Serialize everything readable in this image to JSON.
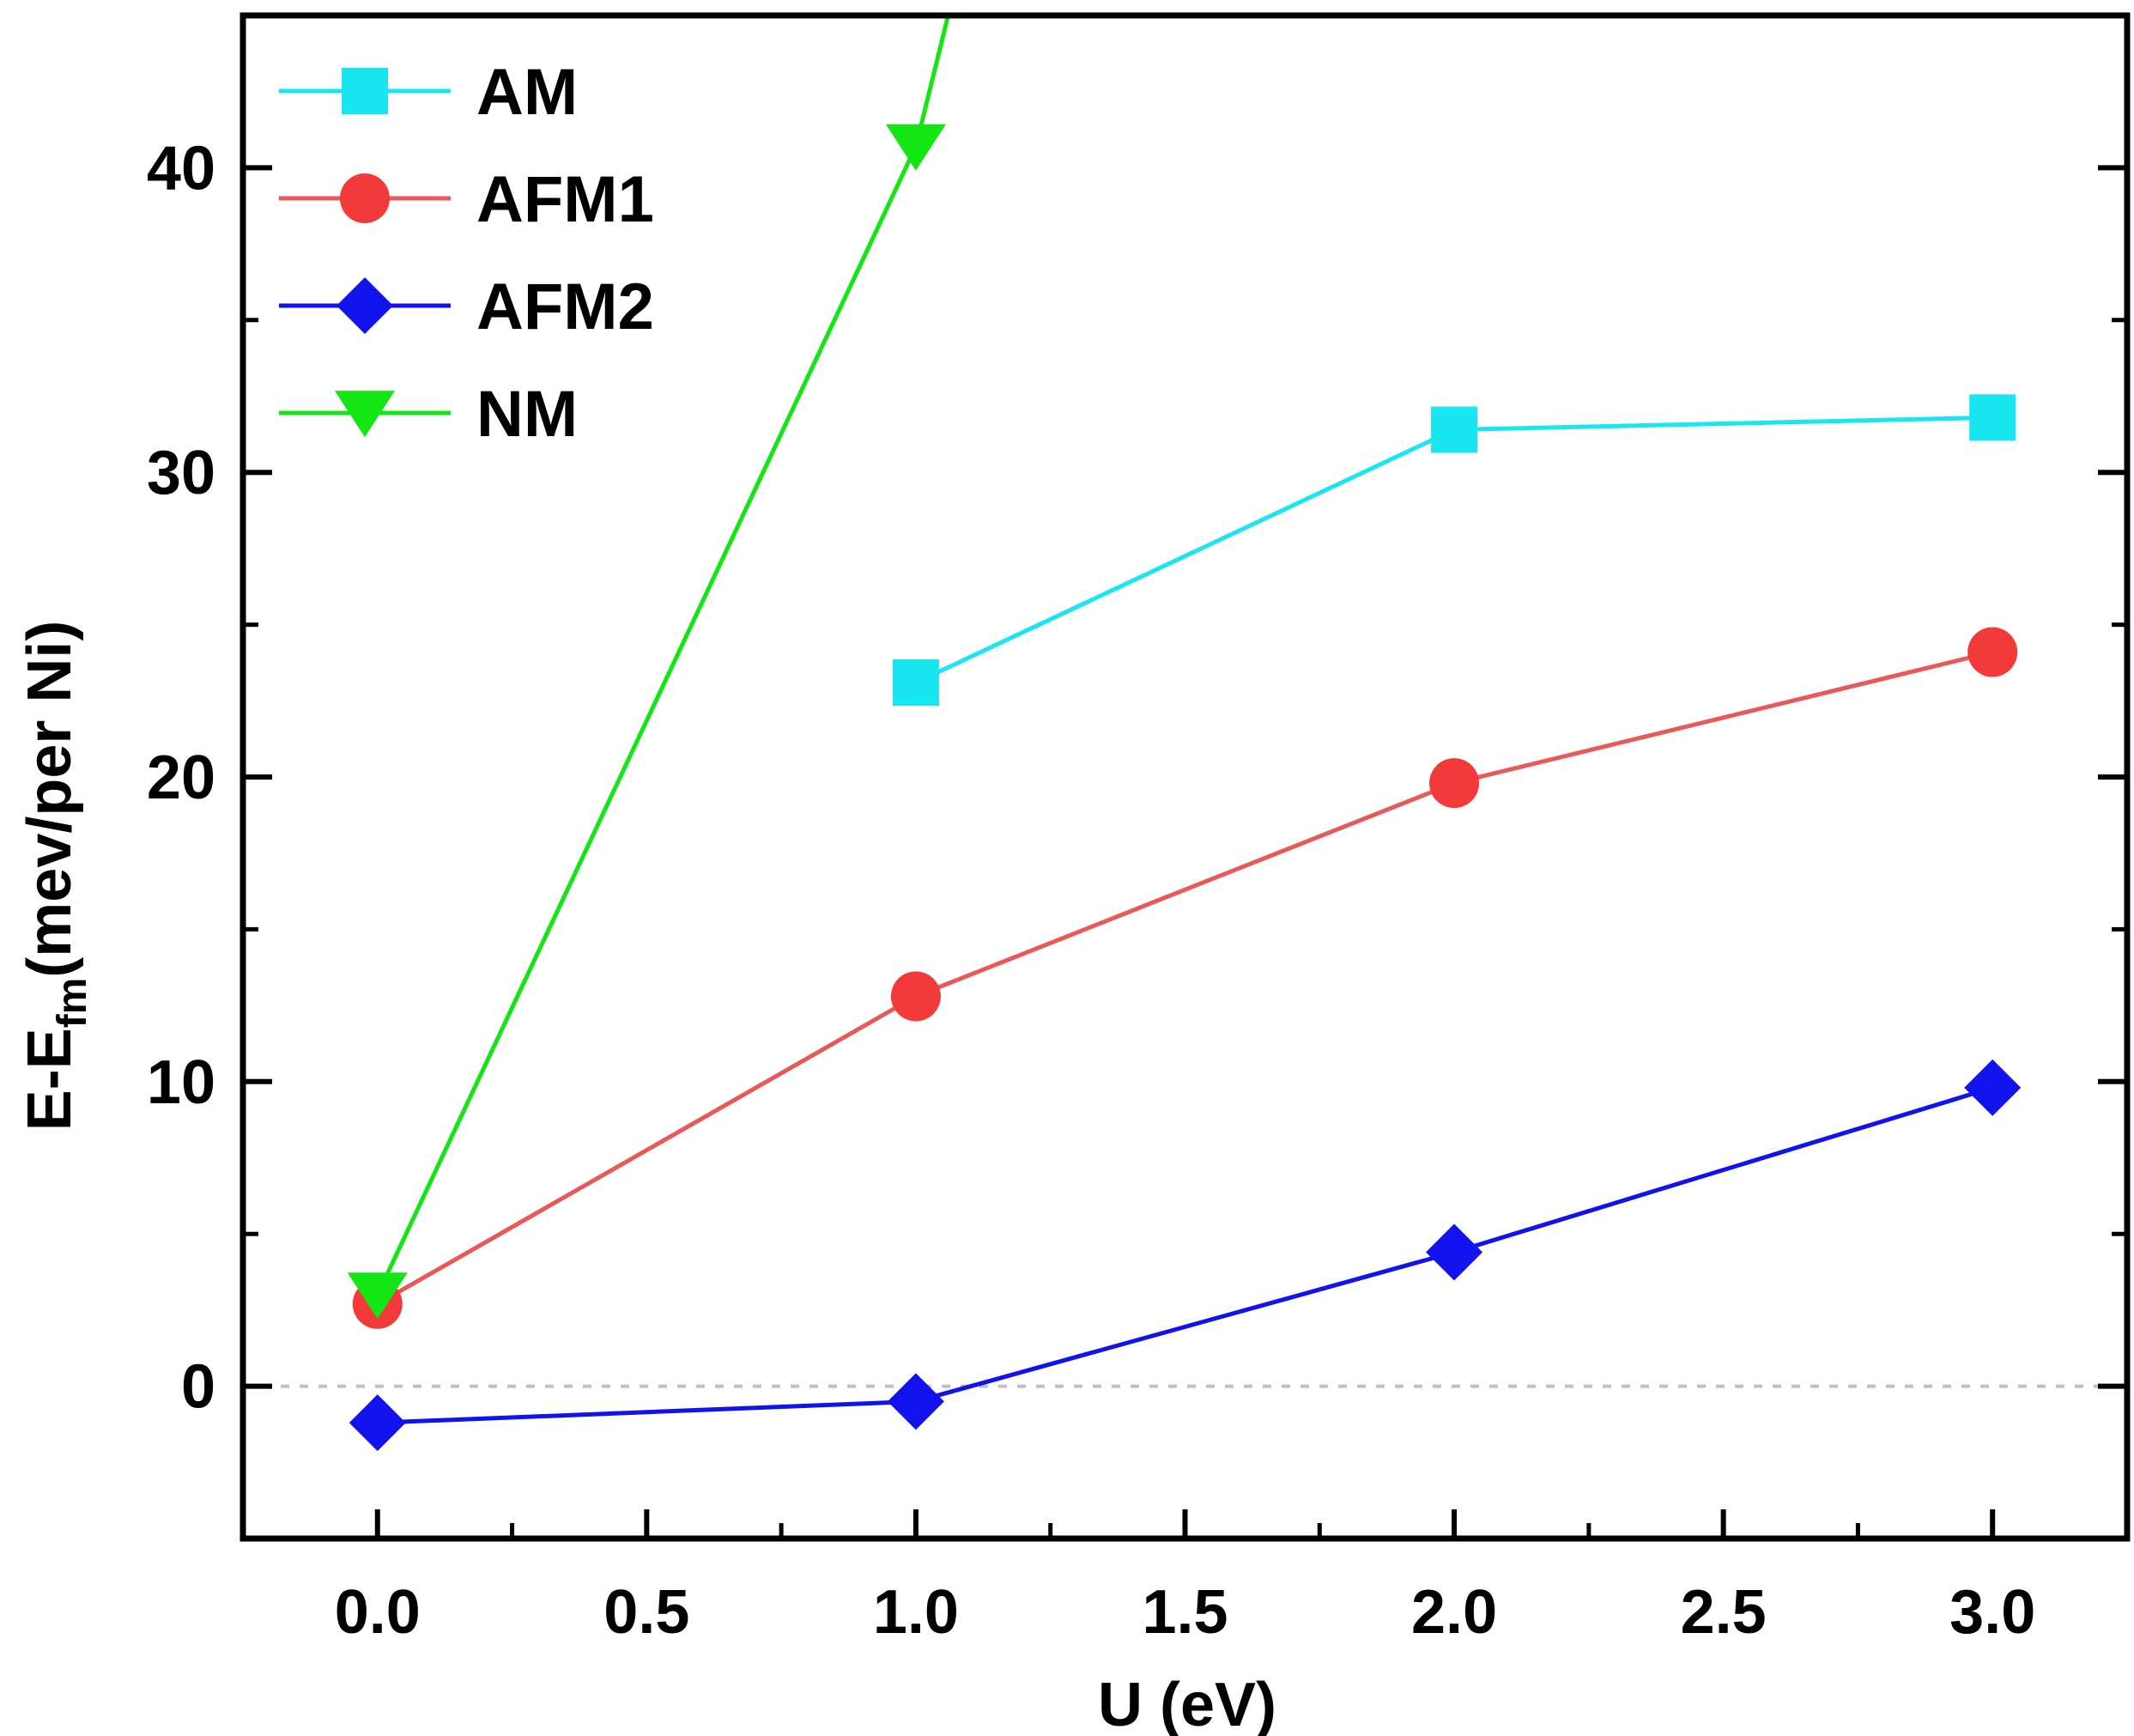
{
  "chart_data": {
    "type": "line",
    "title": "",
    "xlabel": "U (eV)",
    "ylabel_main": "E-E",
    "ylabel_sub": "fm",
    "ylabel_rest": "(mev/per Ni)",
    "xlim": [
      -0.25,
      3.25
    ],
    "ylim": [
      -5,
      45
    ],
    "xticks": [
      0.0,
      0.5,
      1.0,
      1.5,
      2.0,
      2.5,
      3.0
    ],
    "xtick_labels": [
      "0.0",
      "0.5",
      "1.0",
      "1.5",
      "2.0",
      "2.5",
      "3.0"
    ],
    "yticks": [
      0,
      10,
      20,
      30,
      40
    ],
    "ytick_labels": [
      "0",
      "10",
      "20",
      "30",
      "40"
    ],
    "reference_line_y": 0,
    "legend_position": "top-left",
    "series": [
      {
        "name": "AM",
        "color": "#19e6f0",
        "marker": "square",
        "x": [
          1.0,
          2.0,
          3.0
        ],
        "y": [
          23.1,
          31.4,
          31.8
        ]
      },
      {
        "name": "AFM1",
        "color": "#f23a3a",
        "line_color": "#e85a5a",
        "marker": "circle",
        "x": [
          0.0,
          1.0,
          2.0,
          3.0
        ],
        "y": [
          2.7,
          12.8,
          19.8,
          24.1
        ]
      },
      {
        "name": "AFM2",
        "color": "#1212ee",
        "marker": "diamond",
        "x": [
          0.0,
          1.0,
          2.0,
          3.0
        ],
        "y": [
          -1.2,
          -0.5,
          4.4,
          9.8
        ]
      },
      {
        "name": "NM",
        "color": "#14e614",
        "marker": "triangle-down",
        "x": [
          0.0,
          1.0,
          1.06
        ],
        "y": [
          3.0,
          40.7,
          45
        ],
        "marker_count": 2
      }
    ]
  }
}
